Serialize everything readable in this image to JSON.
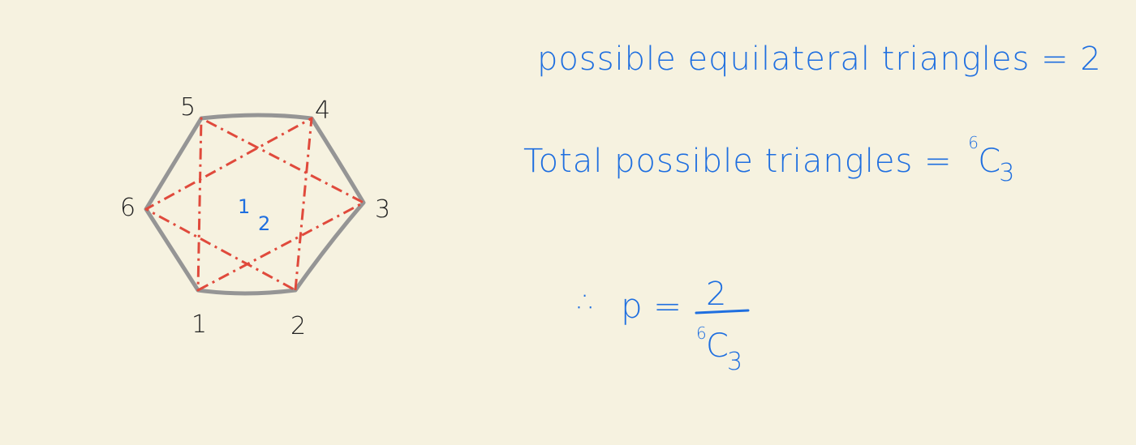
{
  "colors": {
    "background": "#f6f2e0",
    "hexagon": "#959595",
    "triangles": "#e04a3c",
    "ink_black": "#222222",
    "ink_blue": "#1f6fe0"
  },
  "vertex_labels": [
    "1",
    "2",
    "3",
    "4",
    "5",
    "6"
  ],
  "inner_labels": [
    "1",
    "2"
  ],
  "notes": {
    "equilateral": "possible equilateral triangles = 2",
    "total_text": "Total possible triangles =",
    "combination": {
      "superscript": "6",
      "letter": "C",
      "subscript": "3"
    },
    "therefore": "∴",
    "p_equals": "p =",
    "numerator": "2"
  }
}
